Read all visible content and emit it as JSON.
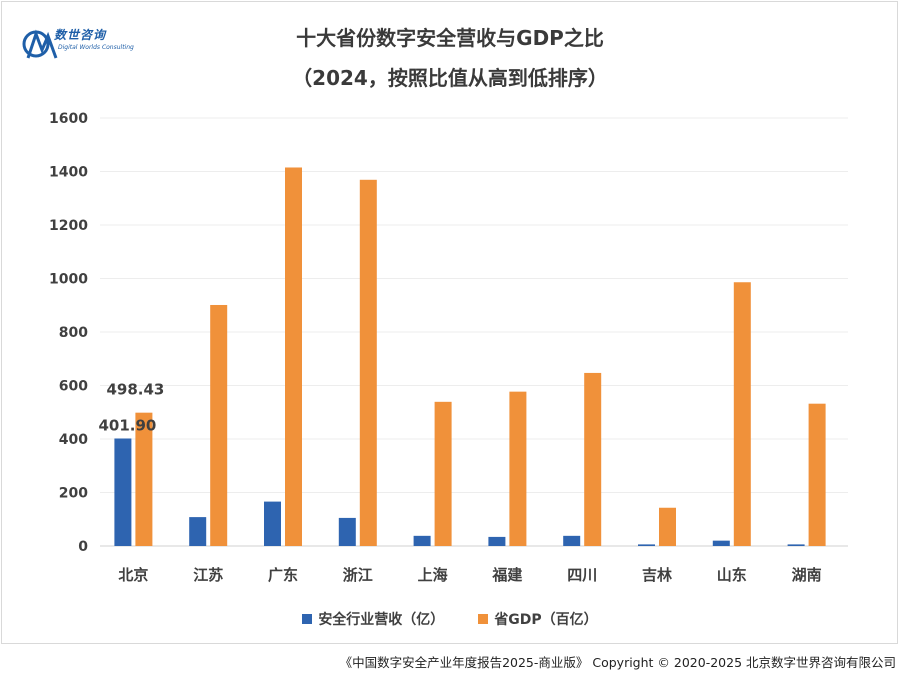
{
  "logo": {
    "cn": "数世咨询",
    "en": "Digital Worlds Consulting"
  },
  "chart_data": {
    "type": "bar",
    "title": "十大省份数字安全营收与GDP之比",
    "subtitle": "（2024，按照比值从高到低排序）",
    "categories": [
      "北京",
      "江苏",
      "广东",
      "浙江",
      "上海",
      "福建",
      "四川",
      "吉林",
      "山东",
      "湖南"
    ],
    "series": [
      {
        "name": "安全行业营收（亿）",
        "color": "#2e64b0",
        "values": [
          401.9,
          108,
          166,
          105,
          38,
          34,
          38,
          6,
          20,
          6
        ]
      },
      {
        "name": "省GDP（百亿）",
        "color": "#f0913a",
        "values": [
          498.43,
          901,
          1415,
          1369,
          539,
          577,
          647,
          143,
          986,
          532
        ]
      }
    ],
    "data_labels": [
      "401.90",
      "498.43"
    ],
    "yticks": [
      "0",
      "200",
      "400",
      "600",
      "800",
      "1000",
      "1200",
      "1400",
      "1600"
    ],
    "ylim": [
      0,
      1600
    ],
    "grid": true,
    "legend_position": "bottom"
  },
  "footer": "《中国数字安全产业年度报告2025-商业版》 Copyright © 2020-2025 北京数字世界咨询有限公司"
}
